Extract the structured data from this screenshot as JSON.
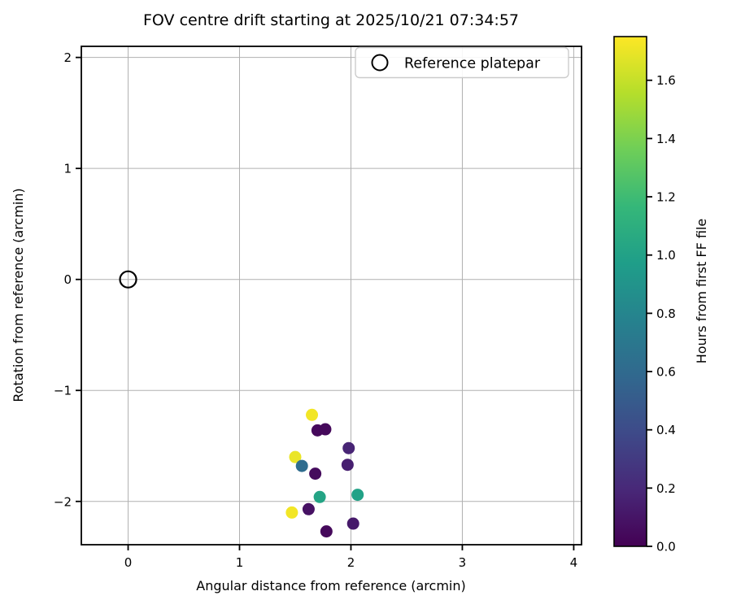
{
  "chart_data": {
    "type": "scatter",
    "title": "FOV centre drift starting at 2025/10/21 07:34:57",
    "xlabel": "Angular distance from reference (arcmin)",
    "ylabel": "Rotation from reference (arcmin)",
    "xlim": [
      -0.42,
      4.07
    ],
    "ylim": [
      -2.39,
      2.1
    ],
    "xticks": [
      0,
      1,
      2,
      3,
      4
    ],
    "yticks": [
      -2,
      -1,
      0,
      1,
      2
    ],
    "grid": true,
    "legend": {
      "label": "Reference platepar",
      "position": "upper right"
    },
    "reference_point": {
      "x": 0,
      "y": 0,
      "label": "Reference platepar"
    },
    "points": [
      {
        "x": 1.65,
        "y": -1.22,
        "hours": 1.72
      },
      {
        "x": 1.7,
        "y": -1.36,
        "hours": 0.04
      },
      {
        "x": 1.77,
        "y": -1.35,
        "hours": 0.04
      },
      {
        "x": 1.98,
        "y": -1.52,
        "hours": 0.18
      },
      {
        "x": 1.5,
        "y": -1.6,
        "hours": 1.7
      },
      {
        "x": 1.56,
        "y": -1.68,
        "hours": 0.62
      },
      {
        "x": 1.97,
        "y": -1.67,
        "hours": 0.15
      },
      {
        "x": 1.68,
        "y": -1.75,
        "hours": 0.05
      },
      {
        "x": 1.72,
        "y": -1.96,
        "hours": 1.02
      },
      {
        "x": 2.06,
        "y": -1.94,
        "hours": 1.0
      },
      {
        "x": 1.62,
        "y": -2.07,
        "hours": 0.08
      },
      {
        "x": 1.47,
        "y": -2.1,
        "hours": 1.72
      },
      {
        "x": 1.78,
        "y": -2.27,
        "hours": 0.04
      },
      {
        "x": 2.02,
        "y": -2.2,
        "hours": 0.12
      }
    ],
    "colorbar": {
      "label": "Hours from first FF file",
      "min": 0.0,
      "max": 1.75,
      "ticks": [
        0.0,
        0.2,
        0.4,
        0.6,
        0.8,
        1.0,
        1.2,
        1.4,
        1.6
      ],
      "colormap": "viridis"
    }
  },
  "colors": {
    "grid": "#b0b0b0",
    "spine": "#000000",
    "legend_border": "#cccccc",
    "viridis_stops": [
      "#440154",
      "#482878",
      "#3e4a89",
      "#31688e",
      "#26828e",
      "#1f9e89",
      "#35b779",
      "#6ece58",
      "#b5de2b",
      "#fde725"
    ]
  }
}
